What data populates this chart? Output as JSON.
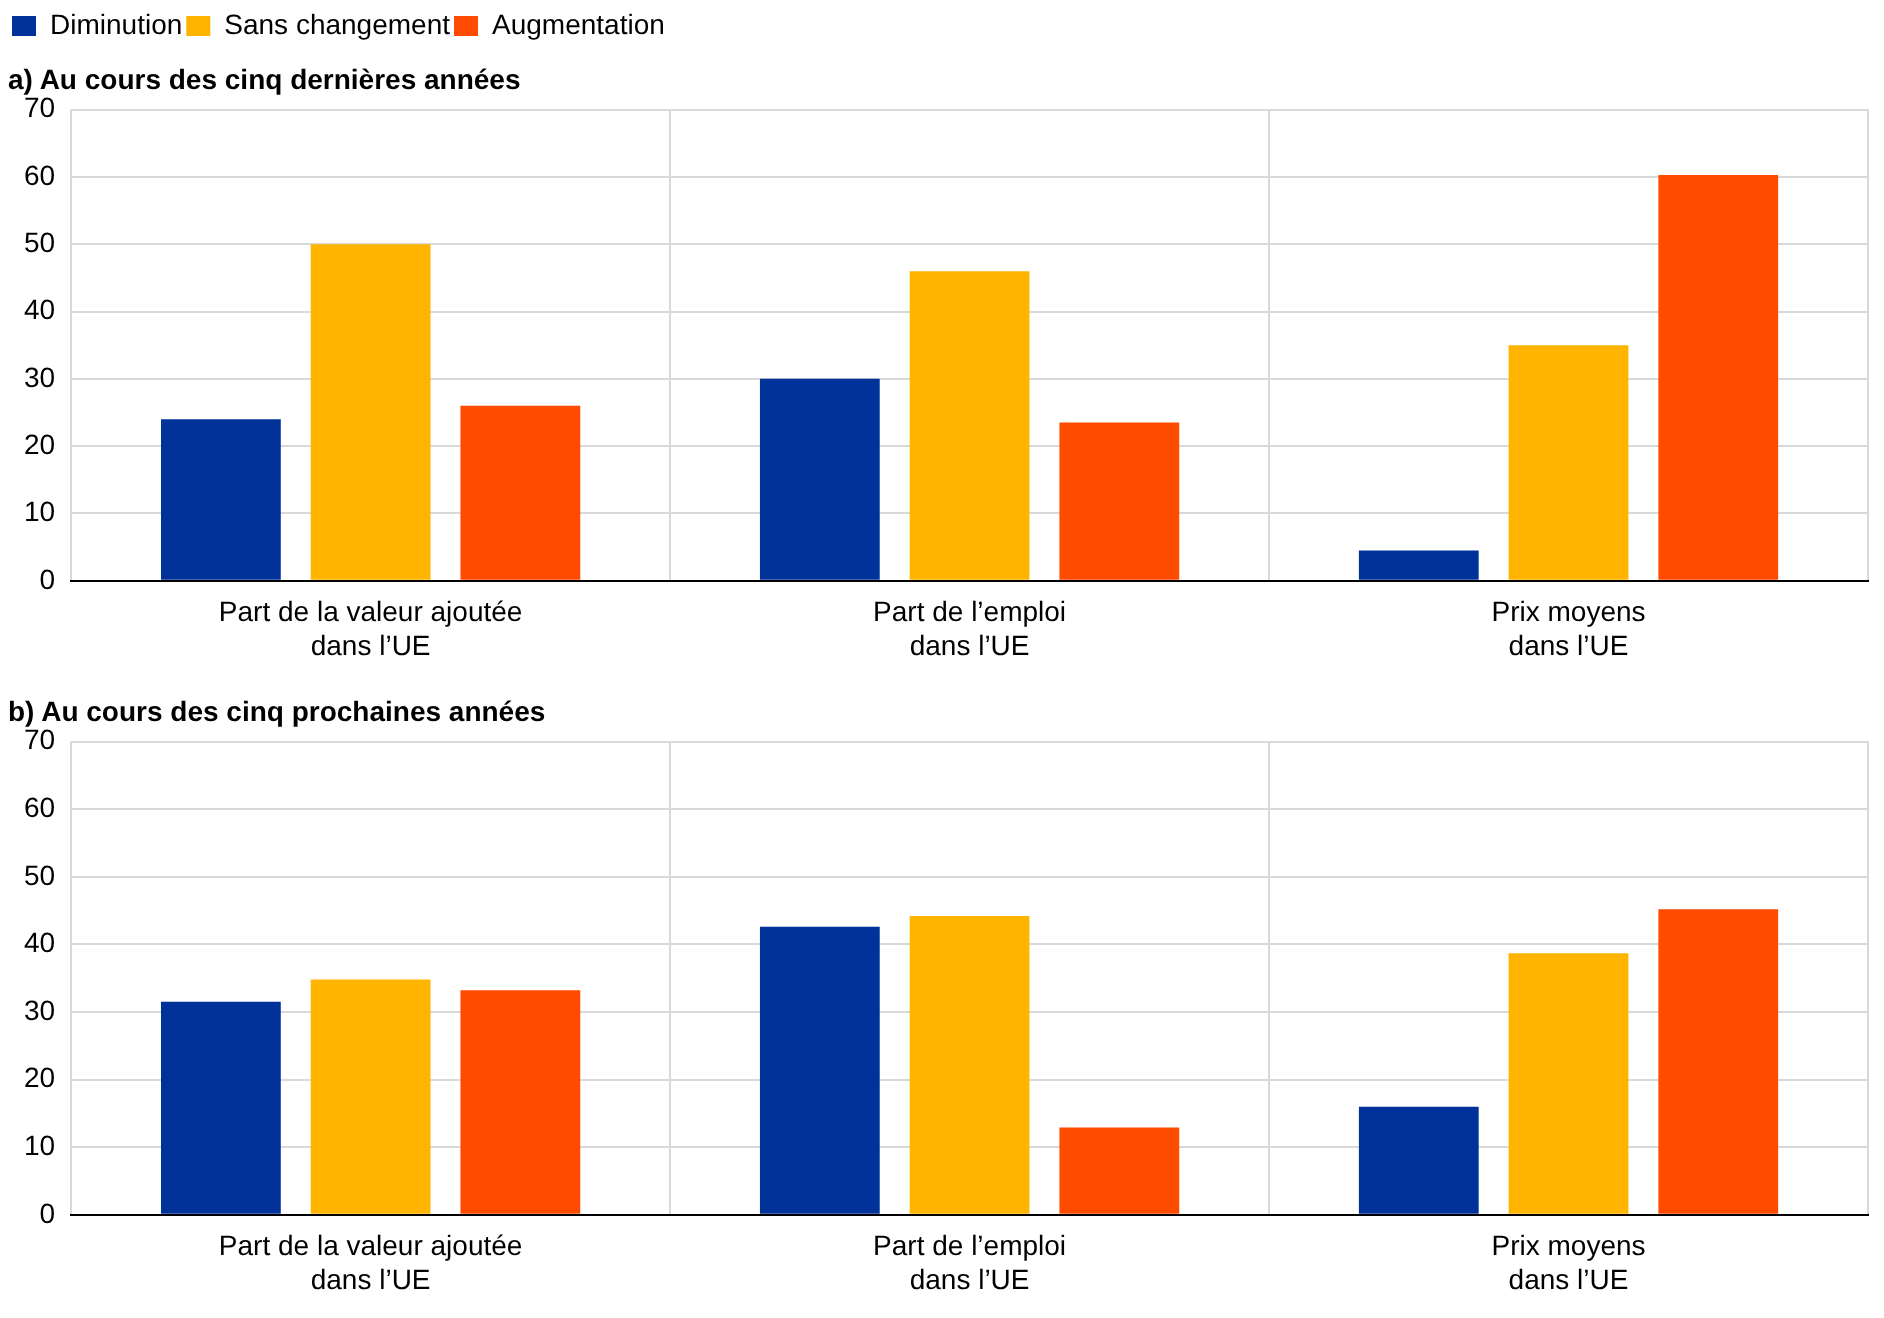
{
  "chart_data": [
    {
      "type": "bar",
      "title": "a) Au cours des cinq dernières années",
      "categories": [
        "Part de la valeur ajoutée\ndans l’UE",
        "Part de l’emploi\ndans l’UE",
        "Prix moyens\ndans l’UE"
      ],
      "series": [
        {
          "name": "Diminution",
          "color": "#003299",
          "values": [
            24,
            30,
            4.5
          ]
        },
        {
          "name": "Sans changement",
          "color": "#ffb400",
          "values": [
            50,
            46,
            35
          ]
        },
        {
          "name": "Augmentation",
          "color": "#ff4b00",
          "values": [
            26,
            23.5,
            60.3
          ]
        }
      ],
      "ylim": [
        0,
        70
      ],
      "yticks": [
        0,
        10,
        20,
        30,
        40,
        50,
        60,
        70
      ],
      "grid": true,
      "legend": "top left"
    },
    {
      "type": "bar",
      "title": "b) Au cours des cinq prochaines années",
      "categories": [
        "Part de la valeur ajoutée\ndans l’UE",
        "Part de l’emploi\ndans l’UE",
        "Prix moyens\ndans l’UE"
      ],
      "series": [
        {
          "color": "#003299",
          "values": [
            31.5,
            42.6,
            16
          ]
        },
        {
          "color": "#ffb400",
          "values": [
            34.8,
            44.2,
            38.7
          ]
        },
        {
          "color": "#ff4b00",
          "values": [
            33.2,
            12.9,
            45.2
          ]
        }
      ],
      "ylim": [
        0,
        70
      ],
      "yticks": [
        0,
        10,
        20,
        30,
        40,
        50,
        60,
        70
      ],
      "grid": true
    }
  ]
}
